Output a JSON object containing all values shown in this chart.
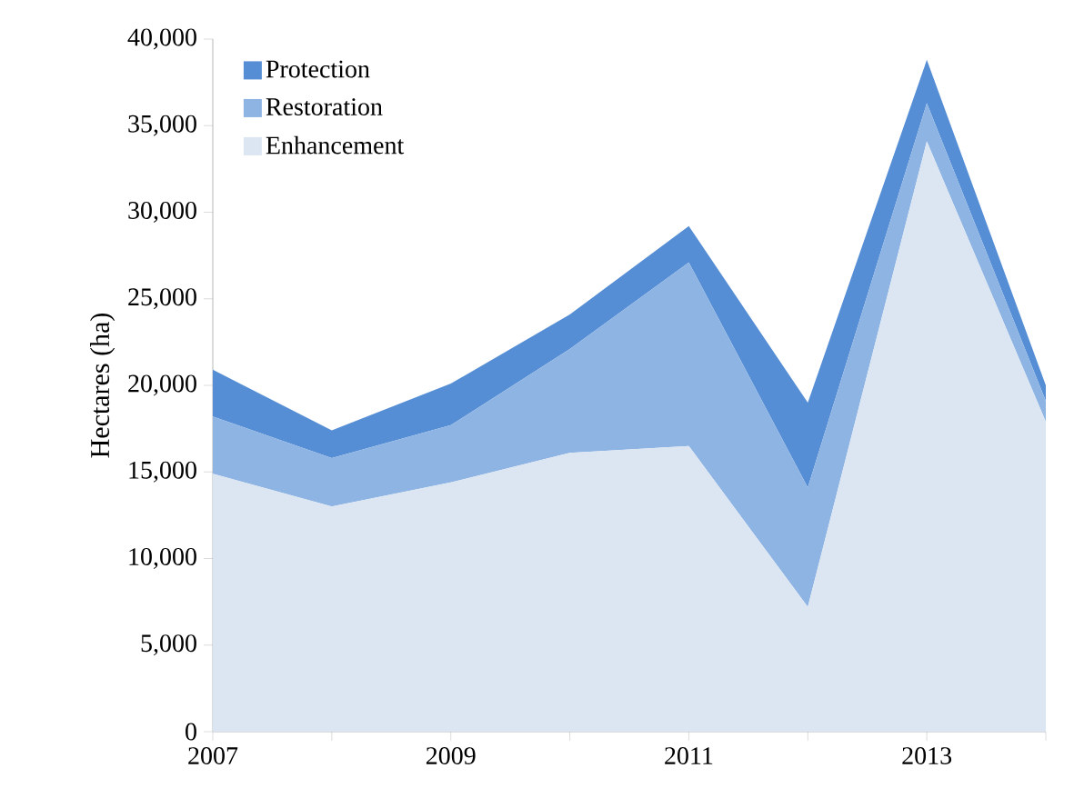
{
  "chart_data": {
    "type": "area",
    "stacked": true,
    "ylabel": "Hectares (ha)",
    "x": [
      2007,
      2008,
      2009,
      2010,
      2011,
      2012,
      2013,
      2014
    ],
    "xlim": [
      2007,
      2014
    ],
    "xticks": [
      2007,
      {
        "value": 2008,
        "label": null
      },
      2009,
      {
        "value": 2010,
        "label": null
      },
      2011,
      {
        "value": 2012,
        "label": null
      },
      2013,
      {
        "value": 2014,
        "label": null
      }
    ],
    "ylim": [
      0,
      40000
    ],
    "yticks": [
      0,
      {
        "value": 5000,
        "label": "5,000"
      },
      {
        "value": 10000,
        "label": "10,000"
      },
      {
        "value": 15000,
        "label": "15,000"
      },
      {
        "value": 20000,
        "label": "20,000"
      },
      {
        "value": 25000,
        "label": "25,000"
      },
      {
        "value": 30000,
        "label": "30,000"
      },
      {
        "value": 35000,
        "label": "35,000"
      },
      {
        "value": 40000,
        "label": "40,000"
      }
    ],
    "legend": "top left",
    "series": [
      {
        "name": "Enhancement",
        "color": "#dce6f2",
        "values": [
          14900,
          13000,
          14400,
          16100,
          16500,
          7200,
          34100,
          17900
        ]
      },
      {
        "name": "Restoration",
        "color": "#8eb4e3",
        "values": [
          3300,
          2800,
          3300,
          6000,
          10600,
          6900,
          2200,
          1200
        ]
      },
      {
        "name": "Protection",
        "color": "#558ed5",
        "values": [
          2700,
          1600,
          2400,
          2000,
          2100,
          4900,
          2500,
          900
        ]
      }
    ]
  }
}
